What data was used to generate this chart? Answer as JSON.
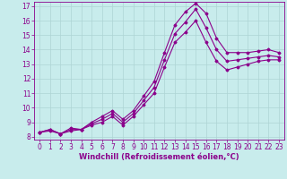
{
  "xlabel": "Windchill (Refroidissement éolien,°C)",
  "bg_color": "#c8ecec",
  "grid_color": "#aed4d4",
  "line_color": "#8b008b",
  "xlim": [
    -0.5,
    23.5
  ],
  "ylim": [
    7.8,
    17.3
  ],
  "xticks": [
    0,
    1,
    2,
    3,
    4,
    5,
    6,
    7,
    8,
    9,
    10,
    11,
    12,
    13,
    14,
    15,
    16,
    17,
    18,
    19,
    20,
    21,
    22,
    23
  ],
  "yticks": [
    8,
    9,
    10,
    11,
    12,
    13,
    14,
    15,
    16,
    17
  ],
  "line1_x": [
    0,
    1,
    2,
    3,
    4,
    5,
    6,
    7,
    8,
    9,
    10,
    11,
    12,
    13,
    14,
    15,
    16,
    17,
    18,
    19,
    20,
    21,
    22,
    23
  ],
  "line1_y": [
    8.3,
    8.5,
    8.2,
    8.5,
    8.5,
    8.9,
    9.2,
    9.6,
    9.0,
    9.6,
    10.5,
    11.4,
    13.3,
    15.1,
    15.9,
    16.8,
    15.5,
    14.0,
    13.2,
    13.3,
    13.4,
    13.5,
    13.6,
    13.5
  ],
  "line2_x": [
    0,
    1,
    2,
    3,
    4,
    5,
    6,
    7,
    8,
    9,
    10,
    11,
    12,
    13,
    14,
    15,
    16,
    17,
    18,
    19,
    20,
    21,
    22,
    23
  ],
  "line2_y": [
    8.3,
    8.4,
    8.2,
    8.4,
    8.5,
    8.8,
    9.0,
    9.4,
    8.8,
    9.4,
    10.2,
    11.0,
    12.8,
    14.5,
    15.2,
    16.0,
    14.5,
    13.2,
    12.6,
    12.8,
    13.0,
    13.2,
    13.3,
    13.3
  ],
  "line3_x": [
    0,
    1,
    2,
    3,
    4,
    5,
    6,
    7,
    8,
    9,
    10,
    11,
    12,
    13,
    14,
    15,
    16,
    17,
    18,
    19,
    20,
    21,
    22,
    23
  ],
  "line3_y": [
    8.3,
    8.5,
    8.2,
    8.6,
    8.5,
    9.0,
    9.4,
    9.8,
    9.2,
    9.8,
    10.8,
    11.8,
    13.8,
    15.7,
    16.6,
    17.2,
    16.5,
    14.8,
    13.8,
    13.8,
    13.8,
    13.9,
    14.0,
    13.8
  ],
  "tick_fontsize": 5.5,
  "xlabel_fontsize": 6.0,
  "marker_size": 1.5,
  "line_width": 0.8
}
